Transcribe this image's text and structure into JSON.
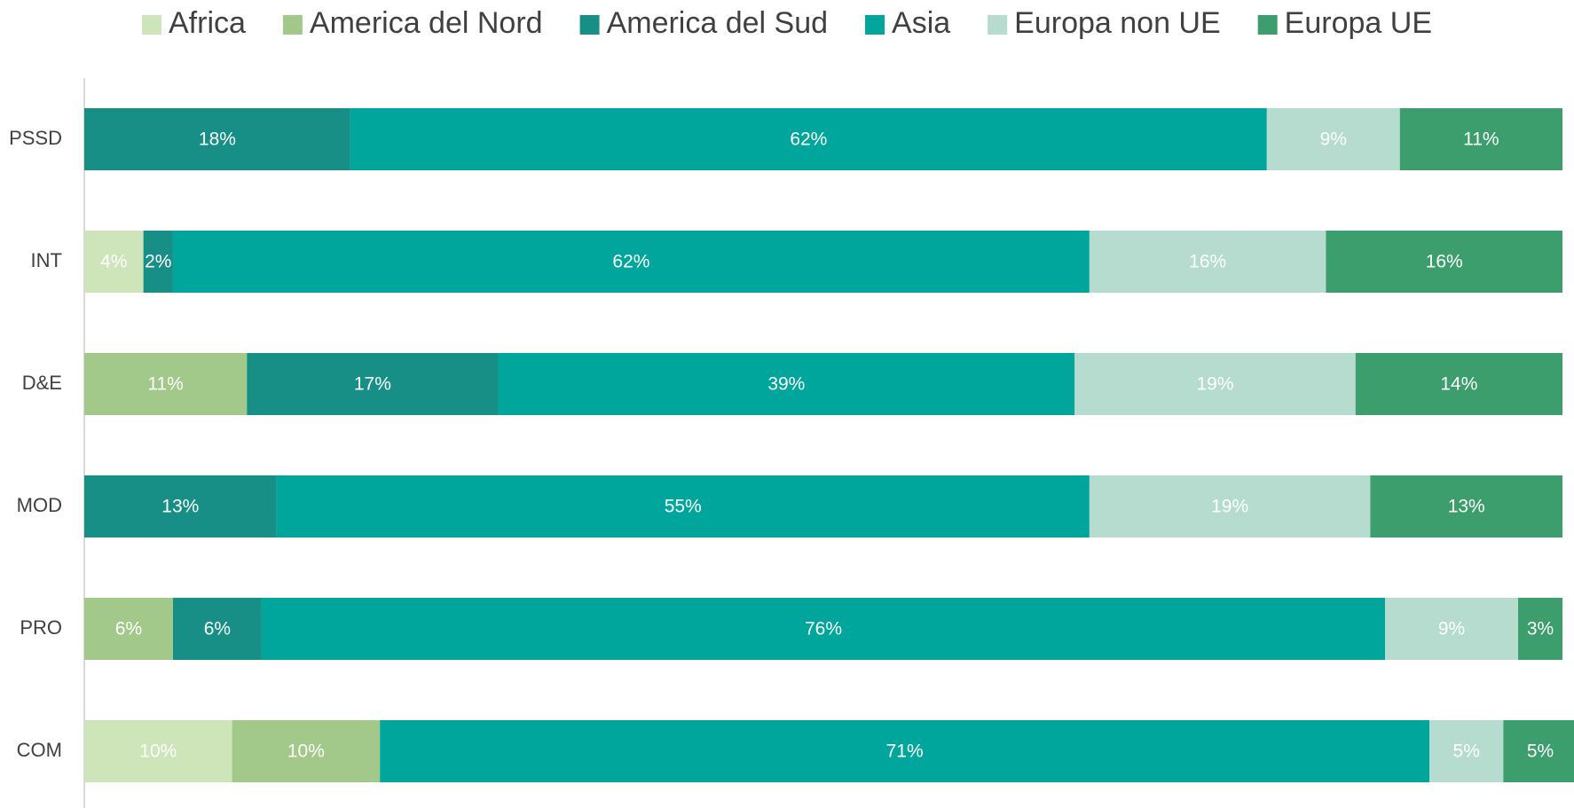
{
  "chart_data": {
    "type": "stacked_barh",
    "categories": [
      "PSSD",
      "INT",
      "D&E",
      "MOD",
      "PRO",
      "COM"
    ],
    "xlim": [
      0,
      100
    ],
    "series": [
      {
        "name": "Africa",
        "color": "#cde5b8",
        "values": [
          null,
          4,
          null,
          null,
          null,
          10
        ],
        "value_labels": [
          null,
          "4%",
          null,
          null,
          null,
          "10%"
        ]
      },
      {
        "name": "America del Nord",
        "color": "#a2c98a",
        "values": [
          null,
          null,
          11,
          null,
          6,
          10
        ],
        "value_labels": [
          null,
          null,
          "11%",
          null,
          "6%",
          "10%"
        ]
      },
      {
        "name": "America del Sud",
        "color": "#178f86",
        "values": [
          18,
          2,
          17,
          13,
          6,
          null
        ],
        "value_labels": [
          "18%",
          "2%",
          "17%",
          "13%",
          "6%",
          null
        ]
      },
      {
        "name": "Asia",
        "color": "#00a59c",
        "values": [
          62,
          62,
          39,
          55,
          76,
          71
        ],
        "value_labels": [
          "62%",
          "62%",
          "39%",
          "55%",
          "76%",
          "71%"
        ]
      },
      {
        "name": "Europa non UE",
        "color": "#b5dccf",
        "values": [
          9,
          16,
          19,
          19,
          9,
          5
        ],
        "value_labels": [
          "9%",
          "16%",
          "19%",
          "19%",
          "9%",
          "5%"
        ]
      },
      {
        "name": "Europa UE",
        "color": "#3b9e6c",
        "values": [
          11,
          16,
          14,
          13,
          3,
          5
        ],
        "value_labels": [
          "11%",
          "16%",
          "14%",
          "13%",
          "3%",
          "5%"
        ]
      }
    ],
    "legend": "top"
  }
}
